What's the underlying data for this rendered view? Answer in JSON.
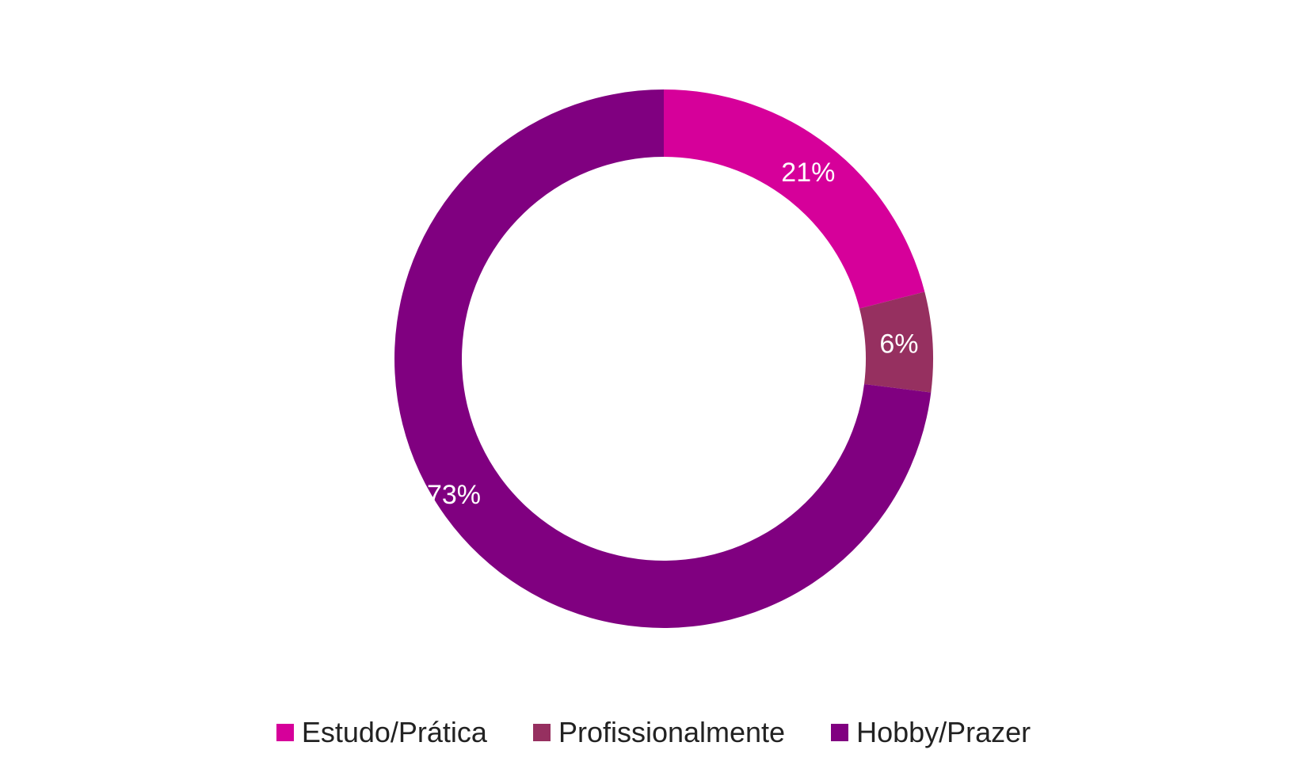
{
  "chart_data": {
    "type": "pie",
    "variant": "donut",
    "title": "",
    "categories": [
      "Estudo/Prática",
      "Profissionalmente",
      "Hobby/Prazer"
    ],
    "values": [
      21,
      6,
      73
    ],
    "labels": [
      "21%",
      "6%",
      "73%"
    ],
    "colors": [
      "#D6009A",
      "#963060",
      "#800080"
    ],
    "legend_position": "bottom",
    "start_angle": "12 o'clock, clockwise"
  }
}
